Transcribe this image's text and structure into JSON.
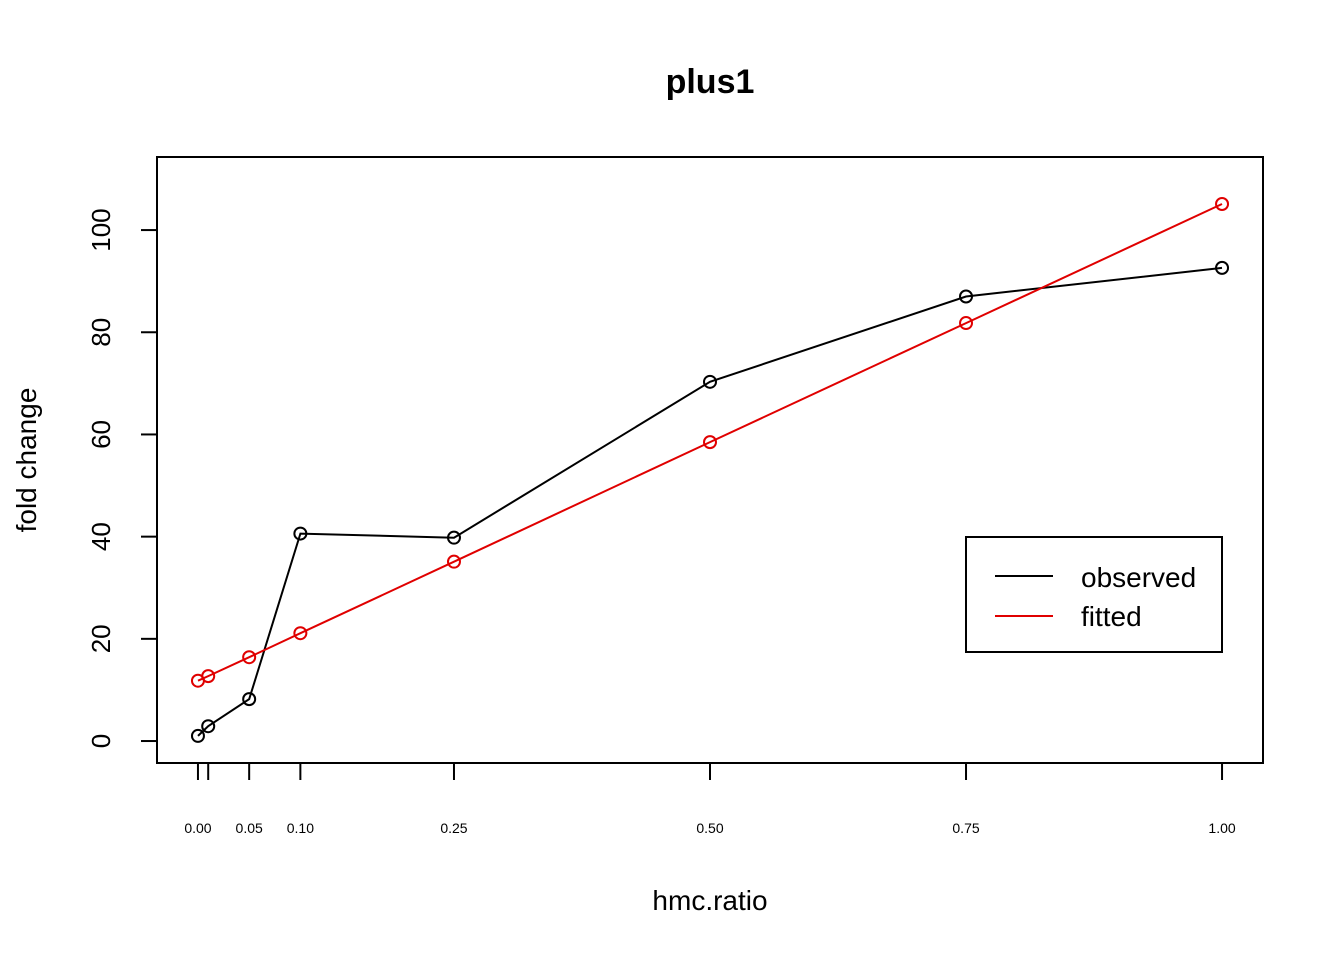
{
  "chart_data": {
    "type": "line",
    "title": "plus1",
    "xlabel": "hmc.ratio",
    "ylabel": "fold change",
    "xlim": [
      -0.04,
      1.04
    ],
    "ylim": [
      -4.3,
      114.3
    ],
    "x_ticks": [
      0,
      0.01,
      0.05,
      0.1,
      0.25,
      0.5,
      0.75,
      1.0
    ],
    "x_tick_labels": [
      {
        "value": 0,
        "label": "0.00"
      },
      {
        "value": 0.05,
        "label": "0.05"
      },
      {
        "value": 0.1,
        "label": "0.10"
      },
      {
        "value": 0.25,
        "label": "0.25"
      },
      {
        "value": 0.5,
        "label": "0.50"
      },
      {
        "value": 0.75,
        "label": "0.75"
      },
      {
        "value": 1.0,
        "label": "1.00"
      }
    ],
    "y_ticks": [
      0,
      20,
      40,
      60,
      80,
      100
    ],
    "y_tick_labels": [
      "0",
      "20",
      "40",
      "60",
      "80",
      "100"
    ],
    "legend_position": "right, lower-middle",
    "grid": false,
    "series": [
      {
        "name": "observed",
        "color": "#000000",
        "x": [
          0,
          0.01,
          0.05,
          0.1,
          0.25,
          0.5,
          0.75,
          1.0
        ],
        "y": [
          1.0,
          2.9,
          8.2,
          40.6,
          39.8,
          70.3,
          87.0,
          92.6
        ]
      },
      {
        "name": "fitted",
        "color": "#e00000",
        "x": [
          0,
          0.01,
          0.05,
          0.1,
          0.25,
          0.5,
          0.75,
          1.0
        ],
        "y": [
          11.8,
          12.7,
          16.4,
          21.1,
          35.1,
          58.5,
          81.8,
          105.1
        ]
      }
    ]
  }
}
